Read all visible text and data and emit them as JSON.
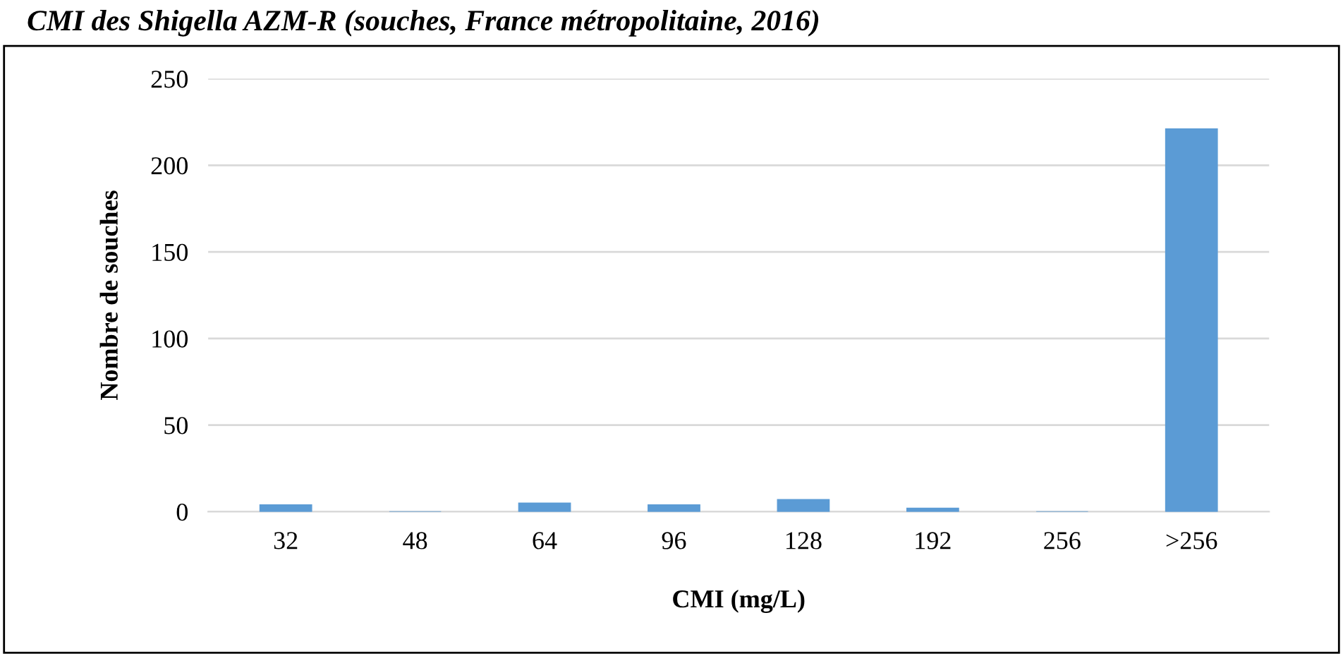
{
  "chart_data": {
    "type": "bar",
    "title": "CMI des Shigella AZM-R (souches, France métropolitaine, 2016)",
    "xlabel": "CMI (mg/L)",
    "ylabel": "Nombre de souches",
    "categories": [
      "32",
      "48",
      "64",
      "96",
      "128",
      "192",
      "256",
      ">256"
    ],
    "values": [
      4,
      0,
      5,
      4,
      7,
      2,
      0,
      221
    ],
    "color": "#5b9bd5",
    "ylim": [
      0,
      250
    ],
    "yticks": [
      0,
      50,
      100,
      150,
      200,
      250
    ],
    "grid": "y",
    "legend": false
  }
}
